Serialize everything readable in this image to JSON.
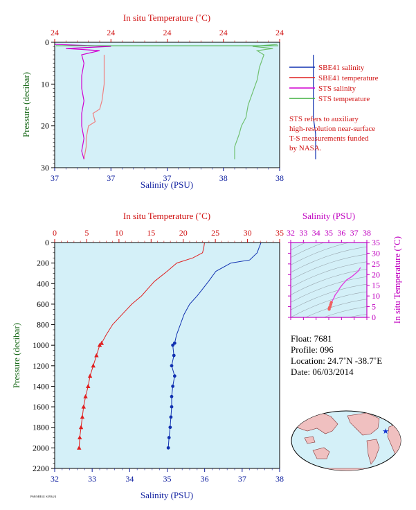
{
  "colors": {
    "plot_bg": "#d4f0f8",
    "temperature": "#e02020",
    "salinity": "#1030b0",
    "sts_salinity": "#d000d0",
    "sts_temperature": "#40b040",
    "pressure_axis": "#1a6a1a",
    "ts_axis": "#c000c0"
  },
  "top_panel": {
    "temp_axis_title": "In situ Temperature (˚C)",
    "temp_ticks": [
      "24",
      "24",
      "24",
      "24",
      "24"
    ],
    "sal_axis_title": "Salinity (PSU)",
    "sal_ticks": [
      "37",
      "37",
      "37",
      "38",
      "38"
    ],
    "pressure_axis_title": "Pressure (decibar)",
    "pressure_ticks": [
      "0",
      "10",
      "20",
      "30"
    ],
    "legend": [
      {
        "label": "SBE41 salinity",
        "color": "#1030b0"
      },
      {
        "label": "SBE41 temperature",
        "color": "#e02020"
      },
      {
        "label": "STS salinity",
        "color": "#d000d0"
      },
      {
        "label": "STS temperature",
        "color": "#40b040"
      }
    ],
    "note_lines": [
      "STS refers to auxiliary",
      "high-resolution near-surface",
      "T-S measurements funded",
      "by NASA."
    ]
  },
  "main_panel": {
    "temp_axis_title": "In situ Temperature (˚C)",
    "temp_ticks": [
      "0",
      "5",
      "10",
      "15",
      "20",
      "25",
      "30",
      "35"
    ],
    "sal_axis_title": "Salinity (PSU)",
    "sal_ticks": [
      "32",
      "33",
      "34",
      "35",
      "36",
      "37",
      "38"
    ],
    "pressure_axis_title": "Pressure (decibar)",
    "pressure_ticks": [
      "0",
      "200",
      "400",
      "600",
      "800",
      "1000",
      "1200",
      "1400",
      "1600",
      "1800",
      "2000",
      "2200"
    ]
  },
  "ts_panel": {
    "sal_axis_title": "Salinity (PSU)",
    "sal_ticks": [
      "32",
      "33",
      "34",
      "35",
      "36",
      "37",
      "38"
    ],
    "temp_axis_title": "In situ Temperature (˚C)",
    "temp_ticks": [
      "0",
      "5",
      "10",
      "15",
      "20",
      "25",
      "30",
      "35"
    ]
  },
  "float_info": {
    "float": "Float:  7681",
    "profile": "Profile:  096",
    "location": "Location:  24.7˚N  -38.7˚E",
    "date": "Date:  06/03/2014"
  },
  "footer_code": "P68/SBE41 S3934/4",
  "chart_data": [
    {
      "type": "line",
      "title": "",
      "xlabel": "Salinity (PSU) / In situ Temperature (˚C)",
      "ylabel": "Pressure (decibar)",
      "ylim": [
        30,
        0
      ],
      "series": [
        {
          "name": "SBE41 salinity",
          "axis": "salinity",
          "xlim": [
            37,
            38
          ],
          "points": [
            [
              38.15,
              3
            ],
            [
              38.15,
              8
            ],
            [
              38.15,
              13
            ],
            [
              38.15,
              18
            ],
            [
              38.16,
              22
            ],
            [
              38.16,
              25
            ],
            [
              38.16,
              28
            ]
          ]
        },
        {
          "name": "SBE41 temperature",
          "axis": "temperature",
          "xlim": [
            0,
            1
          ],
          "points": [
            [
              0.22,
              3
            ],
            [
              0.22,
              6
            ],
            [
              0.22,
              10
            ],
            [
              0.21,
              14
            ],
            [
              0.2,
              16
            ],
            [
              0.17,
              17
            ],
            [
              0.18,
              19
            ],
            [
              0.15,
              20
            ],
            [
              0.14,
              23
            ],
            [
              0.14,
              25
            ],
            [
              0.13,
              28
            ]
          ]
        },
        {
          "name": "STS salinity",
          "axis": "salinity",
          "xlim": [
            37,
            38
          ],
          "points": [
            [
              37.0,
              0.5
            ],
            [
              37.25,
              1
            ],
            [
              37.05,
              1.5
            ],
            [
              37.2,
              2
            ],
            [
              37.12,
              3
            ],
            [
              37.13,
              5
            ],
            [
              37.12,
              8
            ],
            [
              37.12,
              11
            ],
            [
              37.13,
              14
            ],
            [
              37.12,
              17
            ],
            [
              37.12,
              20
            ],
            [
              37.13,
              23
            ],
            [
              37.12,
              26
            ],
            [
              37.13,
              28
            ]
          ]
        },
        {
          "name": "STS temperature",
          "axis": "temperature",
          "xlim": [
            0,
            1
          ],
          "points": [
            [
              0.99,
              0.5
            ],
            [
              0.88,
              1
            ],
            [
              0.97,
              1.5
            ],
            [
              0.9,
              2
            ],
            [
              0.93,
              3
            ],
            [
              0.91,
              6
            ],
            [
              0.9,
              9
            ],
            [
              0.88,
              12
            ],
            [
              0.86,
              15
            ],
            [
              0.85,
              18
            ],
            [
              0.83,
              20
            ],
            [
              0.82,
              22
            ],
            [
              0.8,
              25
            ],
            [
              0.8,
              28
            ]
          ]
        }
      ]
    },
    {
      "type": "line",
      "title": "",
      "xlabel": "Salinity (PSU)",
      "ylabel": "Pressure (decibar)",
      "ylim": [
        2200,
        0
      ],
      "temp_xlim": [
        0,
        35
      ],
      "sal_xlim": [
        32,
        38
      ],
      "series": [
        {
          "name": "In situ Temperature",
          "axis": "temperature",
          "marker": "triangle",
          "points": [
            [
              23.3,
              5
            ],
            [
              23.2,
              50
            ],
            [
              23.0,
              100
            ],
            [
              21.5,
              150
            ],
            [
              19.0,
              200
            ],
            [
              17.5,
              280
            ],
            [
              15.5,
              380
            ],
            [
              14.5,
              450
            ],
            [
              13.5,
              520
            ],
            [
              12.0,
              600
            ],
            [
              10.5,
              700
            ],
            [
              9.0,
              800
            ],
            [
              8.0,
              900
            ],
            [
              7.3,
              980
            ],
            [
              7.0,
              1000
            ],
            [
              6.5,
              1100
            ],
            [
              6.0,
              1200
            ],
            [
              5.5,
              1300
            ],
            [
              5.2,
              1400
            ],
            [
              4.8,
              1500
            ],
            [
              4.5,
              1600
            ],
            [
              4.3,
              1700
            ],
            [
              4.1,
              1800
            ],
            [
              3.9,
              1900
            ],
            [
              3.8,
              2000
            ]
          ]
        },
        {
          "name": "Salinity",
          "axis": "salinity",
          "marker": "dot",
          "points": [
            [
              37.5,
              5
            ],
            [
              37.45,
              50
            ],
            [
              37.4,
              100
            ],
            [
              37.2,
              170
            ],
            [
              36.7,
              200
            ],
            [
              36.3,
              280
            ],
            [
              36.1,
              380
            ],
            [
              35.95,
              450
            ],
            [
              35.8,
              520
            ],
            [
              35.6,
              600
            ],
            [
              35.45,
              700
            ],
            [
              35.35,
              800
            ],
            [
              35.25,
              900
            ],
            [
              35.2,
              980
            ],
            [
              35.15,
              1000
            ],
            [
              35.18,
              1100
            ],
            [
              35.12,
              1200
            ],
            [
              35.2,
              1300
            ],
            [
              35.15,
              1400
            ],
            [
              35.12,
              1500
            ],
            [
              35.12,
              1600
            ],
            [
              35.1,
              1700
            ],
            [
              35.08,
              1800
            ],
            [
              35.05,
              1900
            ],
            [
              35.03,
              2000
            ]
          ]
        }
      ]
    },
    {
      "type": "scatter",
      "title": "",
      "xlabel": "Salinity (PSU)",
      "ylabel": "In situ Temperature (˚C)",
      "xlim": [
        32,
        38
      ],
      "ylim": [
        0,
        35
      ],
      "points": [
        [
          37.5,
          23.3
        ],
        [
          37.3,
          21.5
        ],
        [
          36.8,
          19.0
        ],
        [
          36.4,
          17.5
        ],
        [
          36.1,
          15.5
        ],
        [
          35.9,
          14.0
        ],
        [
          35.7,
          12.0
        ],
        [
          35.5,
          10.5
        ],
        [
          35.4,
          9.0
        ],
        [
          35.3,
          8.0
        ],
        [
          35.2,
          7.0
        ],
        [
          35.15,
          6.0
        ],
        [
          35.1,
          5.0
        ],
        [
          35.05,
          4.5
        ],
        [
          35.03,
          3.8
        ]
      ]
    }
  ]
}
